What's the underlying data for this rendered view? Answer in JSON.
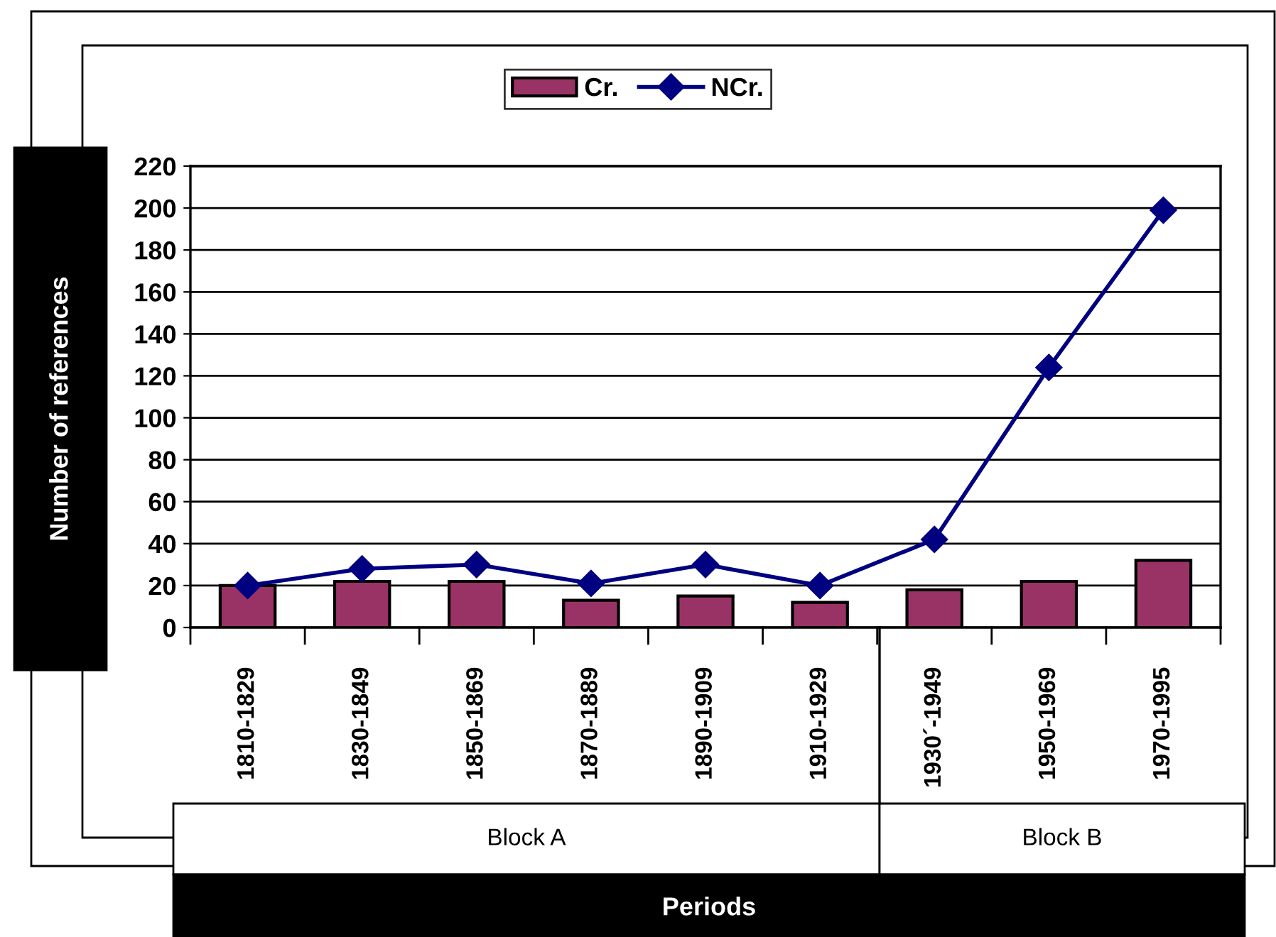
{
  "chart_data": {
    "type": "bar",
    "xlabel": "Periods",
    "ylabel": "Number of references",
    "categories": [
      "1810-1829",
      "1830-1849",
      "1850-1869",
      "1870-1889",
      "1890-1909",
      "1910-1929",
      "1930´-1949",
      "1950-1969",
      "1970-1995"
    ],
    "series": [
      {
        "name": "Cr.",
        "color": "#993366",
        "values": [
          20,
          22,
          22,
          13,
          15,
          12,
          18,
          22,
          32
        ]
      },
      {
        "name": "NCr.",
        "type": "line",
        "color": "#000080",
        "marker": "diamond",
        "values": [
          20,
          28,
          30,
          21,
          30,
          20,
          42,
          124,
          199
        ]
      }
    ],
    "ylim": [
      0,
      220
    ],
    "yticks": [
      0,
      20,
      40,
      60,
      80,
      100,
      120,
      140,
      160,
      180,
      200,
      220
    ],
    "grid": "y",
    "legend": "top",
    "annotations": [
      "Block A",
      "Block B"
    ]
  }
}
